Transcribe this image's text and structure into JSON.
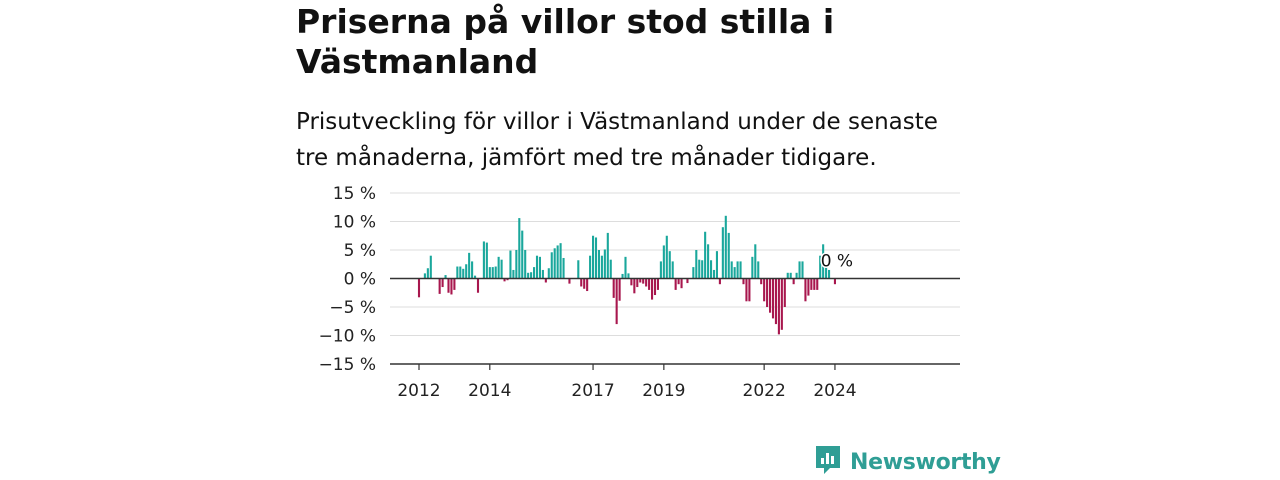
{
  "header": {
    "title": "Priserna på villor stod stilla i Västmanland",
    "subtitle": "Prisutveckling för villor i Västmanland under de senaste tre månaderna, jämfört med tre månader tidigare."
  },
  "brand": {
    "name": "Newsworthy",
    "icon": "newsworthy-logo-icon",
    "color": "#2f9e95"
  },
  "chart_data": {
    "type": "bar",
    "colors": {
      "positive": "#1aa79c",
      "negative": "#a8174e",
      "zero_line": "#333333",
      "grid": "#dddddd"
    },
    "ylim": [
      -15,
      15
    ],
    "yticks": [
      {
        "value": 15,
        "label": "15 %"
      },
      {
        "value": 10,
        "label": "10 %"
      },
      {
        "value": 5,
        "label": "5 %"
      },
      {
        "value": 0,
        "label": "0 %"
      },
      {
        "value": -5,
        "label": "−5 %"
      },
      {
        "value": -10,
        "label": "−10 %"
      },
      {
        "value": -15,
        "label": "−15 %"
      }
    ],
    "xticks": [
      {
        "index": 0,
        "label": "2012"
      },
      {
        "index": 24,
        "label": "2014"
      },
      {
        "index": 59,
        "label": "2017"
      },
      {
        "index": 83,
        "label": "2019"
      },
      {
        "index": 117,
        "label": "2022"
      },
      {
        "index": 141,
        "label": "2024"
      }
    ],
    "last_value_label": "0 %",
    "values": [
      -3.3,
      0,
      0.9,
      1.8,
      4.0,
      0,
      0,
      -2.7,
      -1.5,
      0.6,
      -2.5,
      -2.8,
      -2.0,
      2.1,
      2.1,
      1.7,
      2.5,
      4.5,
      3.0,
      0.5,
      -2.5,
      0,
      6.5,
      6.3,
      2.0,
      2.0,
      2.1,
      3.8,
      3.3,
      -0.5,
      -0.3,
      4.9,
      1.5,
      5.0,
      10.6,
      8.4,
      5.0,
      1.0,
      1.1,
      2.0,
      4.0,
      3.8,
      1.5,
      -0.7,
      1.8,
      4.6,
      5.3,
      5.8,
      6.2,
      3.6,
      0,
      -0.9,
      0,
      0,
      3.2,
      -1.4,
      -1.8,
      -2.2,
      4.0,
      7.5,
      7.2,
      5.0,
      4.0,
      5.1,
      8.0,
      3.3,
      -3.4,
      -8.0,
      -3.9,
      0.8,
      3.8,
      0.9,
      -1.2,
      -2.6,
      -1.5,
      -0.7,
      -0.9,
      -1.4,
      -2.0,
      -3.7,
      -2.9,
      -2.0,
      3.0,
      5.8,
      7.5,
      4.8,
      3.0,
      -2.0,
      -1.0,
      -1.7,
      0,
      -0.8,
      0,
      2.0,
      5.0,
      3.3,
      3.2,
      8.2,
      6.0,
      3.2,
      1.5,
      4.8,
      -1.0,
      9.0,
      11.0,
      8.0,
      3.0,
      2.0,
      3.0,
      3.0,
      -1.0,
      -4.0,
      -4.0,
      3.8,
      6.0,
      3.0,
      -1.0,
      -4.0,
      -5.0,
      -6.0,
      -7.0,
      -8.0,
      -9.8,
      -9.0,
      -5.0,
      1.0,
      1.0,
      -1.0,
      1.0,
      3.0,
      3.0,
      -4.0,
      -3.0,
      -2.0,
      -2.0,
      -2.0,
      4.0,
      6.0,
      2.0,
      1.5,
      0,
      -1.0,
      0
    ]
  }
}
